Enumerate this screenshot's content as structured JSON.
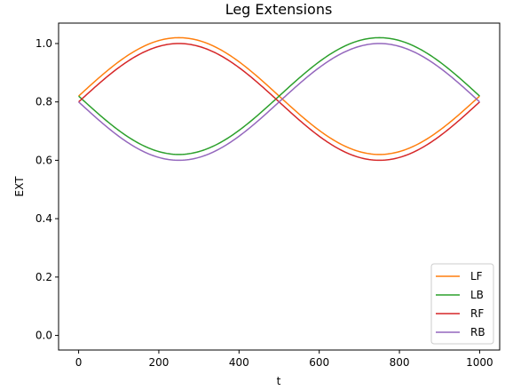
{
  "chart_data": {
    "type": "line",
    "title": "Leg Extensions",
    "xlabel": "t",
    "ylabel": "EXT",
    "xlim": [
      -50,
      1050
    ],
    "ylim": [
      -0.05,
      1.07
    ],
    "xticks": [
      0,
      200,
      400,
      600,
      800,
      1000
    ],
    "yticks": [
      0.0,
      0.2,
      0.4,
      0.6,
      0.8,
      1.0
    ],
    "xtick_labels": [
      "0",
      "200",
      "400",
      "600",
      "800",
      "1000"
    ],
    "ytick_labels": [
      "0.0",
      "0.2",
      "0.4",
      "0.6",
      "0.8",
      "1.0"
    ],
    "grid": false,
    "legend_position": "bottom-right",
    "series": [
      {
        "name": "LF",
        "color": "#ff7f0e",
        "x": [
          0,
          250,
          500,
          750,
          1000
        ],
        "y": [
          0.82,
          1.02,
          0.82,
          0.62,
          0.82
        ]
      },
      {
        "name": "LB",
        "color": "#2ca02c",
        "x": [
          0,
          250,
          500,
          750,
          1000
        ],
        "y": [
          0.82,
          0.62,
          0.82,
          1.02,
          0.82
        ]
      },
      {
        "name": "RF",
        "color": "#d62728",
        "x": [
          0,
          250,
          500,
          750,
          1000
        ],
        "y": [
          0.8,
          1.0,
          0.8,
          0.6,
          0.8
        ]
      },
      {
        "name": "RB",
        "color": "#9467bd",
        "x": [
          0,
          250,
          500,
          750,
          1000
        ],
        "y": [
          0.8,
          0.6,
          0.8,
          1.0,
          0.8
        ]
      }
    ]
  }
}
